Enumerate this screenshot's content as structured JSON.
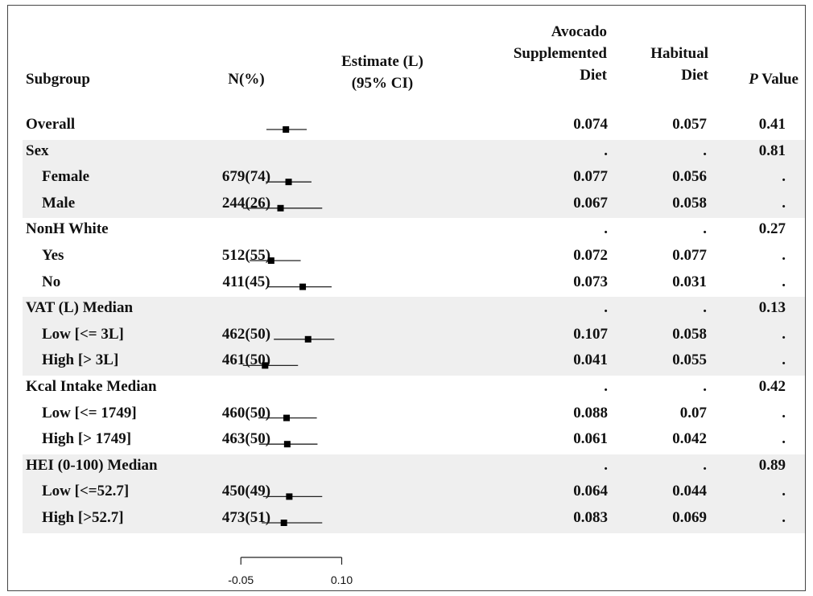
{
  "headers": {
    "subgroup": "Subgroup",
    "n": "N(%)",
    "estimate": [
      "Estimate (L)",
      "(95% CI)"
    ],
    "avocado": [
      "Avocado",
      "Supplemented",
      "Diet"
    ],
    "habitual": [
      "Habitual",
      "Diet"
    ],
    "p_italic": "P",
    "p_rest": " Value"
  },
  "rows": [
    {
      "label": "Overall",
      "indent": false,
      "shaded": false,
      "n": "",
      "avocado": "0.074",
      "habitual": "0.057",
      "p": "0.41"
    },
    {
      "label": "Sex",
      "indent": false,
      "shaded": true,
      "n": "",
      "avocado": ".",
      "habitual": ".",
      "p": "0.81"
    },
    {
      "label": "Female",
      "indent": true,
      "shaded": true,
      "n": "679(74)",
      "avocado": "0.077",
      "habitual": "0.056",
      "p": "."
    },
    {
      "label": "Male",
      "indent": true,
      "shaded": true,
      "n": "244(26)",
      "avocado": "0.067",
      "habitual": "0.058",
      "p": "."
    },
    {
      "label": "NonH White",
      "indent": false,
      "shaded": false,
      "n": "",
      "avocado": ".",
      "habitual": ".",
      "p": "0.27"
    },
    {
      "label": "Yes",
      "indent": true,
      "shaded": false,
      "n": "512(55)",
      "avocado": "0.072",
      "habitual": "0.077",
      "p": "."
    },
    {
      "label": "No",
      "indent": true,
      "shaded": false,
      "n": "411(45)",
      "avocado": "0.073",
      "habitual": "0.031",
      "p": "."
    },
    {
      "label": "VAT (L) Median",
      "indent": false,
      "shaded": true,
      "n": "",
      "avocado": ".",
      "habitual": ".",
      "p": "0.13"
    },
    {
      "label": "Low [<= 3L]",
      "indent": true,
      "shaded": true,
      "n": "462(50)",
      "avocado": "0.107",
      "habitual": "0.058",
      "p": "."
    },
    {
      "label": "High [> 3L]",
      "indent": true,
      "shaded": true,
      "n": "461(50)",
      "avocado": "0.041",
      "habitual": "0.055",
      "p": "."
    },
    {
      "label": "Kcal Intake Median",
      "indent": false,
      "shaded": false,
      "n": "",
      "avocado": ".",
      "habitual": ".",
      "p": "0.42"
    },
    {
      "label": "Low [<= 1749]",
      "indent": true,
      "shaded": false,
      "n": "460(50)",
      "avocado": "0.088",
      "habitual": "0.07",
      "p": "."
    },
    {
      "label": "High [> 1749]",
      "indent": true,
      "shaded": false,
      "n": "463(50)",
      "avocado": "0.061",
      "habitual": "0.042",
      "p": "."
    },
    {
      "label": "HEI (0-100) Median",
      "indent": false,
      "shaded": true,
      "n": "",
      "avocado": ".",
      "habitual": ".",
      "p": "0.89"
    },
    {
      "label": "Low [<=52.7]",
      "indent": true,
      "shaded": true,
      "n": "450(49)",
      "avocado": "0.064",
      "habitual": "0.044",
      "p": "."
    },
    {
      "label": "High [>52.7]",
      "indent": true,
      "shaded": true,
      "n": "473(51)",
      "avocado": "0.083",
      "habitual": "0.069",
      "p": "."
    }
  ],
  "chart_data": {
    "type": "forest",
    "xlim": [
      -0.1,
      0.15
    ],
    "ticks": [
      -0.05,
      0.1
    ],
    "tick_labels": [
      "-0.05",
      "0.10"
    ],
    "points": [
      {
        "row": 0,
        "est": 0.017,
        "lo": -0.012,
        "hi": 0.048
      },
      {
        "row": 2,
        "est": 0.021,
        "lo": -0.013,
        "hi": 0.055
      },
      {
        "row": 3,
        "est": 0.009,
        "lo": -0.047,
        "hi": 0.071
      },
      {
        "row": 5,
        "est": -0.005,
        "lo": -0.037,
        "hi": 0.039
      },
      {
        "row": 6,
        "est": 0.042,
        "lo": -0.009,
        "hi": 0.085
      },
      {
        "row": 8,
        "est": 0.05,
        "lo": -0.001,
        "hi": 0.089
      },
      {
        "row": 9,
        "est": -0.014,
        "lo": -0.047,
        "hi": 0.035
      },
      {
        "row": 11,
        "est": 0.018,
        "lo": -0.024,
        "hi": 0.063
      },
      {
        "row": 12,
        "est": 0.019,
        "lo": -0.023,
        "hi": 0.064
      },
      {
        "row": 14,
        "est": 0.022,
        "lo": -0.017,
        "hi": 0.071
      },
      {
        "row": 15,
        "est": 0.014,
        "lo": -0.019,
        "hi": 0.071
      }
    ]
  }
}
